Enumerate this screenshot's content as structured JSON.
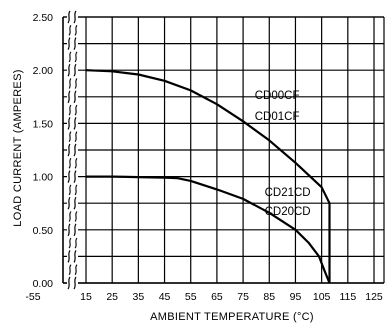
{
  "chart_data": {
    "type": "line",
    "xlabel": "AMBIENT TEMPERATURE (°C)",
    "ylabel": "LOAD CURRENT (AMPERES)",
    "x_tick_labels": [
      "-55",
      "15",
      "25",
      "35",
      "45",
      "55",
      "65",
      "75",
      "85",
      "95",
      "105",
      "115",
      "125"
    ],
    "x_ticks_linear": [
      15,
      25,
      35,
      45,
      55,
      65,
      75,
      85,
      95,
      105,
      115,
      125
    ],
    "y_tick_labels": [
      "2.50",
      "2.00",
      "1.50",
      "1.00",
      "0.50",
      "0.00"
    ],
    "xlim": [
      15,
      125
    ],
    "ylim": [
      0,
      2.5
    ],
    "grid": true,
    "axis_break": "between -55 and 15 on the x axis",
    "series": [
      {
        "name": "CD00CF / CD01CF",
        "x": [
          15,
          25,
          35,
          45,
          55,
          65,
          75,
          85,
          95,
          105,
          108,
          108
        ],
        "y": [
          2.0,
          1.99,
          1.96,
          1.9,
          1.81,
          1.68,
          1.52,
          1.34,
          1.13,
          0.9,
          0.75,
          0.0
        ]
      },
      {
        "name": "CD21CD / CD20CD",
        "x": [
          15,
          25,
          35,
          45,
          50,
          55,
          65,
          75,
          85,
          95,
          100,
          104,
          106,
          108
        ],
        "y": [
          1.0,
          1.0,
          0.995,
          0.99,
          0.985,
          0.96,
          0.88,
          0.79,
          0.66,
          0.5,
          0.38,
          0.25,
          0.12,
          0.0
        ]
      }
    ],
    "annotations": [
      {
        "text": "CD00CF",
        "x": 88,
        "y": 1.73
      },
      {
        "text": "CD01CF",
        "x": 88,
        "y": 1.53
      },
      {
        "text": "CD21CD",
        "x": 92,
        "y": 0.82
      },
      {
        "text": "CD20CD",
        "x": 92,
        "y": 0.64
      }
    ]
  }
}
